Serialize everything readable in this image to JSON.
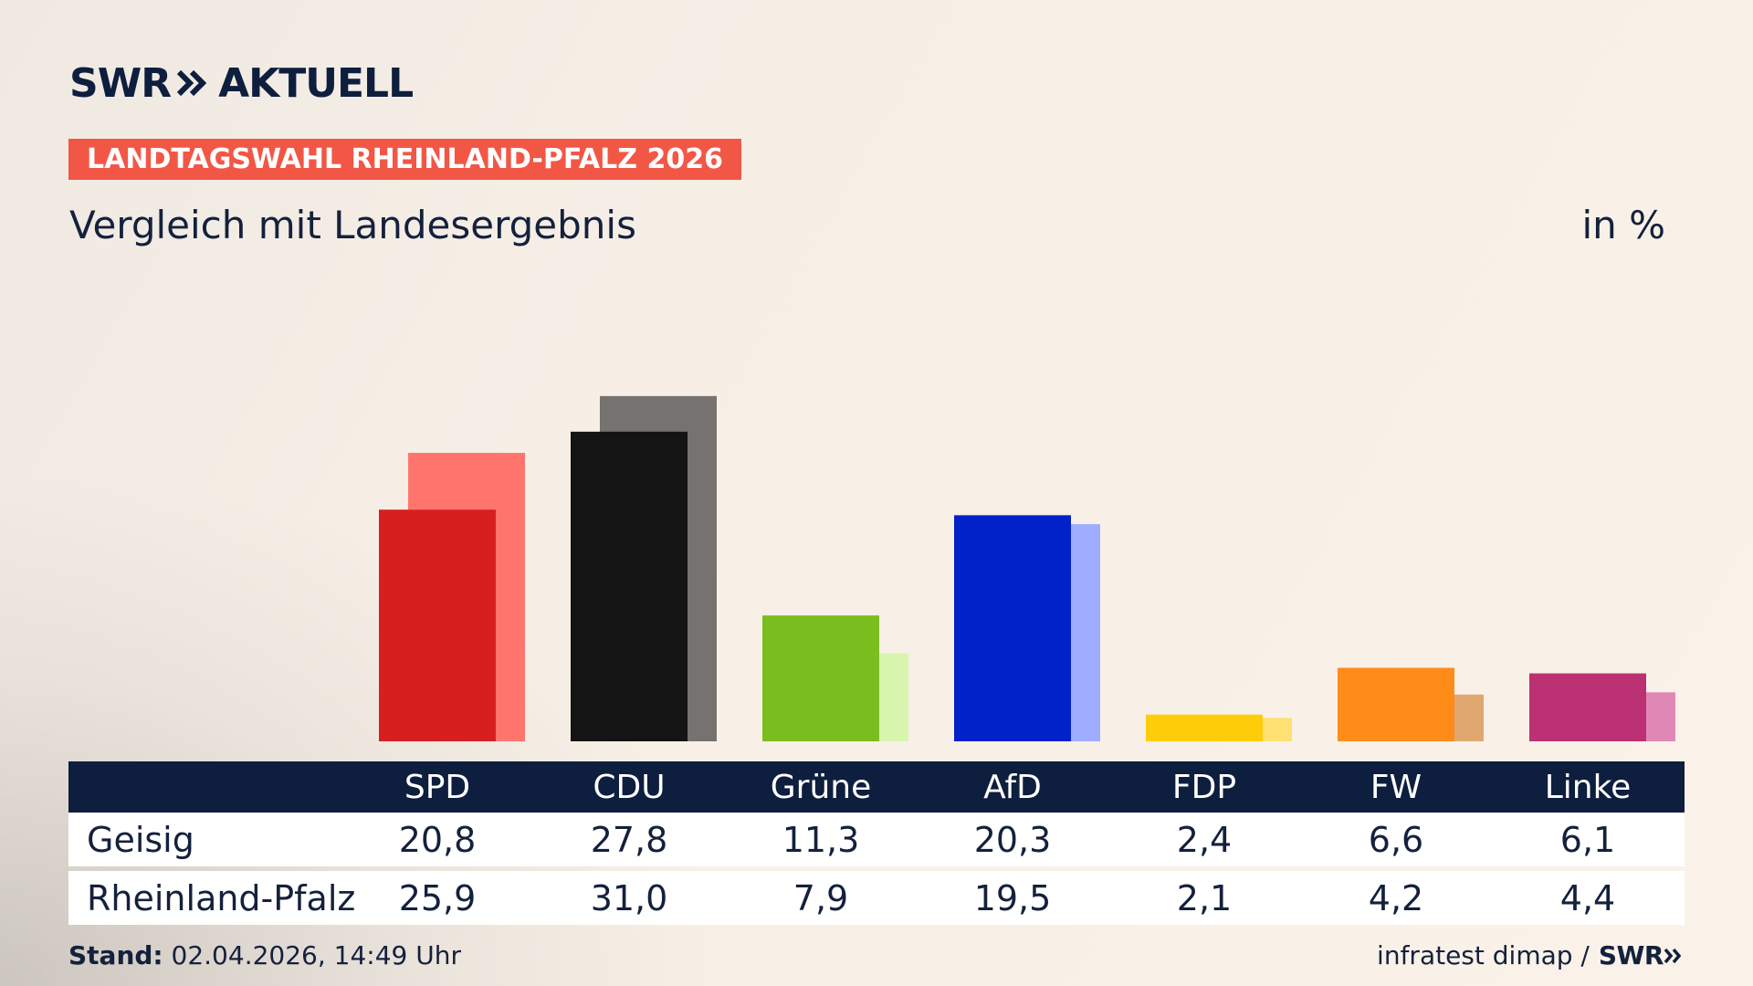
{
  "header": {
    "brand": "SWR",
    "brand_suffix": "AKTUELL",
    "badge": "LANDTAGSWAHL RHEINLAND-PFALZ 2026",
    "subtitle": "Vergleich mit Landesergebnis",
    "unit": "in %"
  },
  "footer": {
    "stand_label": "Stand:",
    "stand_value": "02.04.2026, 14:49 Uhr",
    "source": "infratest dimap /",
    "source_brand": "SWR"
  },
  "chart_data": {
    "type": "bar",
    "categories": [
      "SPD",
      "CDU",
      "Grüne",
      "AfD",
      "FDP",
      "FW",
      "Linke"
    ],
    "series": [
      {
        "name": "Geisig",
        "values": [
          20.8,
          27.8,
          11.3,
          20.3,
          2.4,
          6.6,
          6.1
        ]
      },
      {
        "name": "Rheinland-Pfalz",
        "values": [
          25.9,
          31.0,
          7.9,
          19.5,
          2.1,
          4.2,
          4.4
        ]
      }
    ],
    "display_values": {
      "Geisig": [
        "20,8",
        "27,8",
        "11,3",
        "20,3",
        "2,4",
        "6,6",
        "6,1"
      ],
      "Rheinland-Pfalz": [
        "25,9",
        "31,0",
        "7,9",
        "19,5",
        "2,1",
        "4,2",
        "4,4"
      ]
    },
    "colors": {
      "primary": [
        "#d81f1f",
        "#141414",
        "#7abd1f",
        "#0022c8",
        "#ffcc0a",
        "#ff8c19",
        "#bb3173"
      ],
      "secondary": [
        "#ff756d",
        "#76726f",
        "#d8f6ad",
        "#9fadff",
        "#ffe070",
        "#dfa76f",
        "#e088b5"
      ]
    },
    "ylim": [
      0,
      35
    ],
    "grid": false,
    "legend": "table below chart"
  }
}
